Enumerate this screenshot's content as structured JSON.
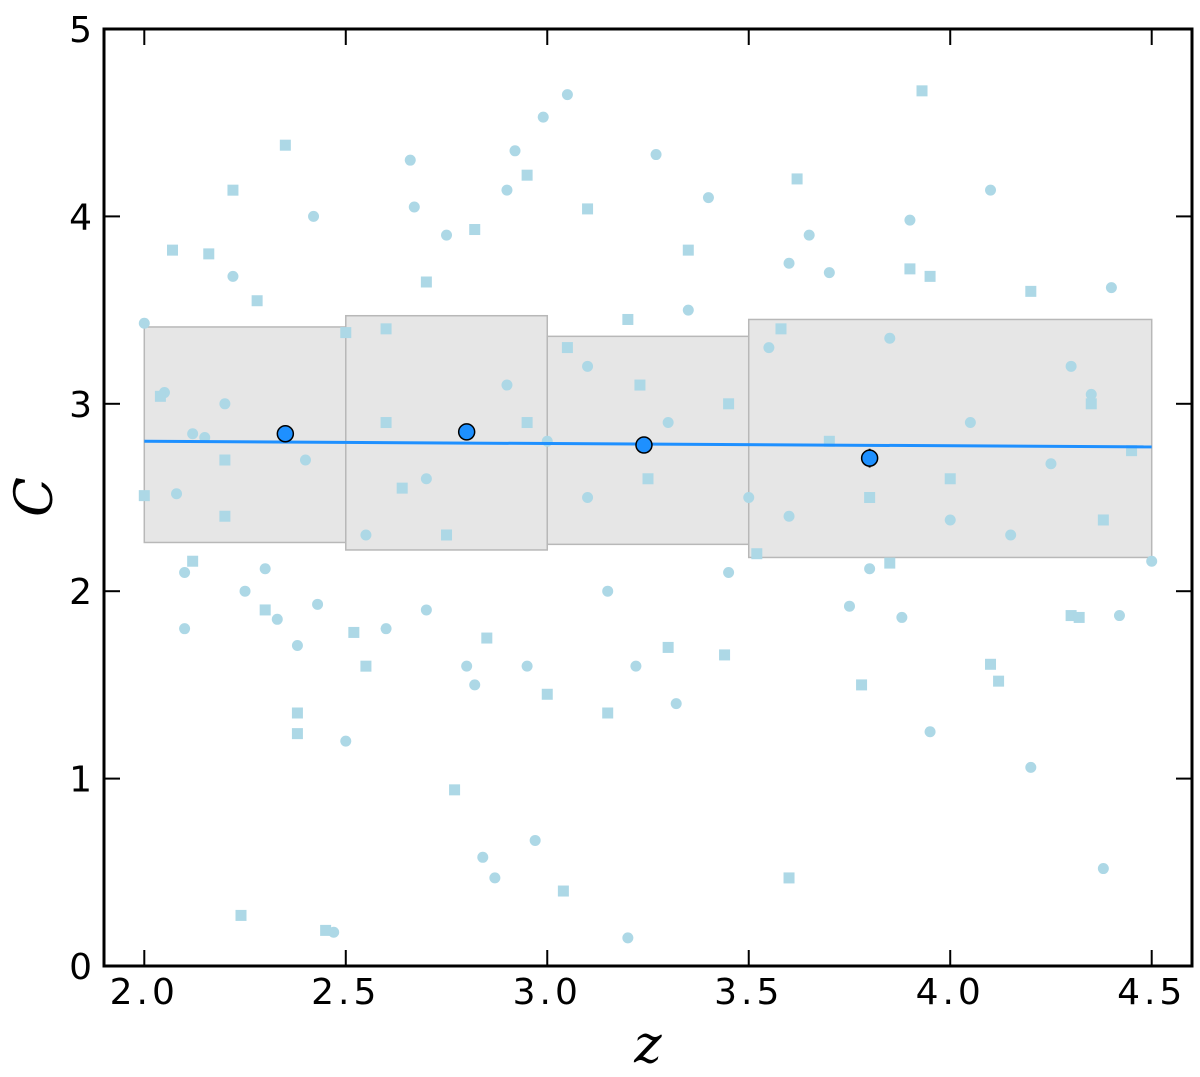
{
  "chart_data": {
    "type": "scatter",
    "xlabel": "z",
    "ylabel": "C",
    "xlim": [
      1.9,
      4.6
    ],
    "ylim": [
      0,
      5
    ],
    "xticks": [
      {
        "value": 2.0,
        "label": "2.0"
      },
      {
        "value": 2.5,
        "label": "2.5"
      },
      {
        "value": 3.0,
        "label": "3.0"
      },
      {
        "value": 3.5,
        "label": "3.5"
      },
      {
        "value": 4.0,
        "label": "4.0"
      },
      {
        "value": 4.5,
        "label": "4.5"
      }
    ],
    "yticks": [
      0,
      1,
      2,
      3,
      4,
      5
    ],
    "grid": false,
    "bands": [
      {
        "x": [
          2.0,
          2.5
        ],
        "y": [
          2.26,
          3.41
        ]
      },
      {
        "x": [
          2.5,
          3.0
        ],
        "y": [
          2.22,
          3.47
        ]
      },
      {
        "x": [
          3.0,
          3.5
        ],
        "y": [
          2.25,
          3.36
        ]
      },
      {
        "x": [
          3.5,
          4.5
        ],
        "y": [
          2.18,
          3.45
        ]
      }
    ],
    "band_color": "#e6e6e6",
    "series": [
      {
        "marker": "circle",
        "color": "#add8e6",
        "x": [
          2.0,
          2.05,
          2.08,
          2.1,
          2.1,
          2.12,
          2.15,
          2.2,
          2.22,
          2.25,
          2.3,
          2.33,
          2.38,
          2.42,
          2.43,
          2.47,
          2.5,
          2.55,
          2.6,
          2.66,
          2.67,
          2.7,
          2.75,
          2.8,
          2.82,
          2.84,
          2.87,
          2.9,
          2.92,
          2.95,
          2.97,
          2.99,
          3.05,
          3.1,
          3.15,
          3.2,
          3.22,
          3.27,
          3.32,
          3.35,
          3.4,
          3.45,
          3.5,
          3.55,
          3.6,
          3.65,
          3.7,
          3.75,
          3.8,
          3.85,
          3.88,
          3.9,
          3.95,
          4.0,
          4.05,
          4.1,
          4.15,
          4.2,
          4.25,
          4.3,
          4.35,
          4.38,
          4.4,
          4.42,
          4.5,
          3.0,
          2.9,
          3.1,
          2.7,
          3.3,
          2.4,
          3.6
        ],
        "values": [
          3.43,
          3.06,
          2.52,
          2.1,
          1.8,
          2.84,
          2.82,
          3.0,
          3.68,
          2.0,
          2.12,
          1.85,
          1.71,
          4.0,
          1.93,
          0.18,
          1.2,
          2.3,
          1.8,
          4.3,
          4.05,
          1.9,
          3.9,
          1.6,
          1.5,
          0.58,
          0.47,
          4.14,
          4.35,
          1.6,
          0.67,
          4.53,
          4.65,
          3.2,
          2.0,
          0.15,
          1.6,
          4.33,
          1.4,
          3.5,
          4.1,
          2.1,
          2.5,
          3.3,
          3.75,
          3.9,
          3.7,
          1.92,
          2.12,
          3.35,
          1.86,
          3.98,
          1.25,
          2.38,
          2.9,
          4.14,
          2.3,
          1.06,
          2.68,
          3.2,
          3.05,
          0.52,
          3.62,
          1.87,
          2.16,
          2.8,
          3.1,
          2.5,
          2.6,
          2.9,
          2.7,
          2.4
        ]
      },
      {
        "marker": "square",
        "color": "#add8e6",
        "x": [
          2.0,
          2.04,
          2.07,
          2.12,
          2.16,
          2.2,
          2.22,
          2.24,
          2.28,
          2.3,
          2.35,
          2.38,
          2.38,
          2.45,
          2.5,
          2.52,
          2.55,
          2.6,
          2.64,
          2.7,
          2.77,
          2.82,
          2.85,
          2.95,
          3.0,
          3.04,
          3.1,
          3.15,
          3.2,
          3.23,
          3.3,
          3.35,
          3.44,
          3.52,
          3.58,
          3.6,
          3.62,
          3.7,
          3.78,
          3.85,
          3.9,
          3.93,
          3.95,
          4.0,
          4.1,
          4.12,
          4.2,
          4.3,
          4.32,
          4.35,
          4.38,
          4.45,
          2.95,
          3.05,
          2.75,
          3.25,
          2.6,
          3.45,
          2.2,
          3.8
        ],
        "values": [
          2.51,
          3.04,
          3.82,
          2.16,
          3.8,
          2.4,
          4.14,
          0.27,
          3.55,
          1.9,
          4.38,
          1.35,
          1.24,
          0.19,
          3.38,
          1.78,
          1.6,
          3.4,
          2.55,
          3.65,
          0.94,
          3.93,
          1.75,
          4.22,
          1.45,
          0.4,
          4.04,
          1.35,
          3.45,
          3.1,
          1.7,
          3.82,
          1.66,
          2.2,
          3.4,
          0.47,
          4.2,
          2.8,
          1.5,
          2.15,
          3.72,
          4.67,
          3.68,
          2.6,
          1.61,
          1.52,
          3.6,
          1.87,
          1.86,
          3.0,
          2.38,
          2.75,
          2.9,
          3.3,
          2.3,
          2.6,
          2.9,
          3.0,
          2.7,
          2.5
        ]
      }
    ],
    "binned": {
      "color": "#1e90ff",
      "x": [
        2.35,
        2.8,
        3.24,
        3.8
      ],
      "values": [
        2.84,
        2.85,
        2.78,
        2.71
      ],
      "errors": [
        0.04,
        0.04,
        0.04,
        0.05
      ]
    },
    "fit": {
      "color": "#1e90ff",
      "x": [
        2.0,
        4.5
      ],
      "values": [
        2.8,
        2.77
      ]
    }
  }
}
